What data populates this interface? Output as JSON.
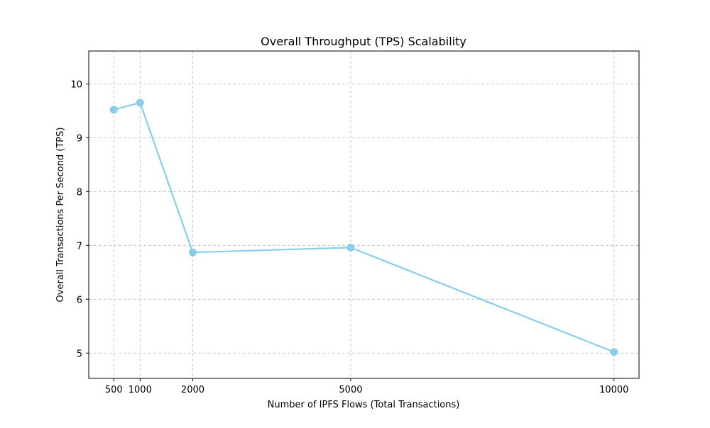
{
  "chart_data": {
    "type": "line",
    "title": "Overall Throughput (TPS) Scalability",
    "xlabel": "Number of IPFS Flows (Total Transactions)",
    "ylabel": "Overall Transactions Per Second (TPS)",
    "x": [
      500,
      1000,
      2000,
      5000,
      10000
    ],
    "x_ticks": [
      500,
      1000,
      2000,
      5000,
      10000
    ],
    "y_ticks": [
      5,
      6,
      7,
      8,
      9,
      10
    ],
    "xlim": [
      25,
      10475
    ],
    "ylim": [
      4.53,
      10.61
    ],
    "grid": true,
    "series": [
      {
        "name": "",
        "values": [
          9.52,
          9.65,
          6.87,
          6.96,
          5.02
        ],
        "color": "#87ceeb",
        "marker": "circle"
      }
    ]
  }
}
